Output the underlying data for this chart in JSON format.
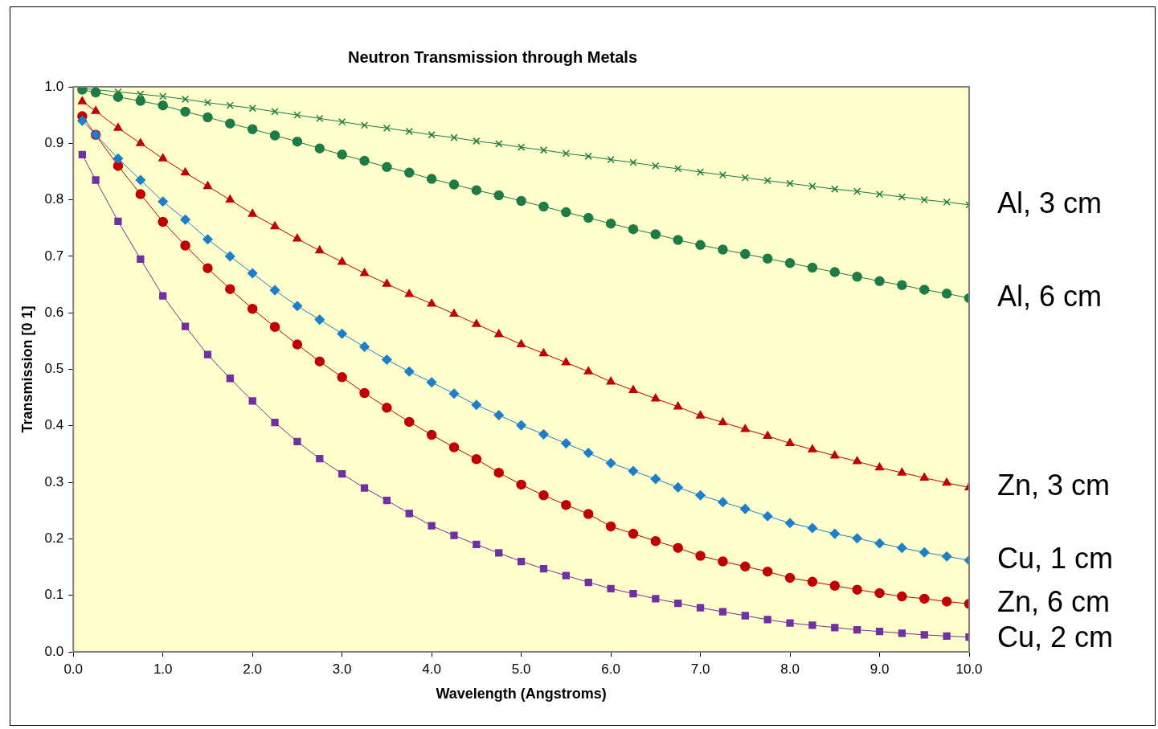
{
  "chart_data": {
    "type": "line",
    "title": "Neutron Transmission through Metals",
    "xlabel": "Wavelength (Angstroms)",
    "ylabel": "Transmission [0 1]",
    "grid": false,
    "legend": false,
    "xlim": [
      0,
      10
    ],
    "ylim": [
      0,
      1
    ],
    "xticks": [
      {
        "value": 0,
        "label": "0.0"
      },
      {
        "value": 1,
        "label": "1.0"
      },
      {
        "value": 2,
        "label": "2.0"
      },
      {
        "value": 3,
        "label": "3.0"
      },
      {
        "value": 4,
        "label": "4.0"
      },
      {
        "value": 5,
        "label": "5.0"
      },
      {
        "value": 6,
        "label": "6.0"
      },
      {
        "value": 7,
        "label": "7.0"
      },
      {
        "value": 8,
        "label": "8.0"
      },
      {
        "value": 9,
        "label": "9.0"
      },
      {
        "value": 10,
        "label": "10.0"
      }
    ],
    "yticks": [
      {
        "value": 0,
        "label": "0.0"
      },
      {
        "value": 0.1,
        "label": "0.1"
      },
      {
        "value": 0.2,
        "label": "0.2"
      },
      {
        "value": 0.3,
        "label": "0.3"
      },
      {
        "value": 0.4,
        "label": "0.4"
      },
      {
        "value": 0.5,
        "label": "0.5"
      },
      {
        "value": 0.6,
        "label": "0.6"
      },
      {
        "value": 0.7,
        "label": "0.7"
      },
      {
        "value": 0.8,
        "label": "0.8"
      },
      {
        "value": 0.9,
        "label": "0.9"
      },
      {
        "value": 1,
        "label": "1.0"
      }
    ],
    "x": [
      0.1,
      0.25,
      0.5,
      0.75,
      1,
      1.25,
      1.5,
      1.75,
      2,
      2.25,
      2.5,
      2.75,
      3,
      3.25,
      3.5,
      3.75,
      4,
      4.25,
      4.5,
      4.75,
      5,
      5.25,
      5.5,
      5.75,
      6,
      6.25,
      6.5,
      6.75,
      7,
      7.25,
      7.5,
      7.75,
      8,
      8.25,
      8.5,
      8.75,
      9,
      9.25,
      9.5,
      9.75,
      10
    ],
    "series": [
      {
        "name": "Al, 3 cm",
        "color": "#1e7b45",
        "marker": "cross",
        "values": [
          0.997,
          0.995,
          0.991,
          0.987,
          0.983,
          0.978,
          0.972,
          0.967,
          0.962,
          0.956,
          0.95,
          0.944,
          0.938,
          0.932,
          0.927,
          0.921,
          0.915,
          0.91,
          0.904,
          0.899,
          0.893,
          0.888,
          0.882,
          0.877,
          0.871,
          0.866,
          0.86,
          0.855,
          0.849,
          0.844,
          0.839,
          0.834,
          0.829,
          0.824,
          0.819,
          0.815,
          0.81,
          0.805,
          0.8,
          0.796,
          0.791
        ]
      },
      {
        "name": "Al, 6 cm",
        "color": "#1e7b45",
        "marker": "circle",
        "values": [
          0.995,
          0.99,
          0.982,
          0.975,
          0.967,
          0.956,
          0.946,
          0.935,
          0.925,
          0.914,
          0.903,
          0.891,
          0.88,
          0.869,
          0.858,
          0.848,
          0.837,
          0.827,
          0.817,
          0.808,
          0.798,
          0.788,
          0.778,
          0.768,
          0.758,
          0.748,
          0.739,
          0.729,
          0.72,
          0.712,
          0.704,
          0.696,
          0.688,
          0.68,
          0.672,
          0.664,
          0.656,
          0.649,
          0.641,
          0.634,
          0.626
        ]
      },
      {
        "name": "Zn, 3 cm",
        "color": "#c00000",
        "marker": "triangle",
        "values": [
          0.974,
          0.957,
          0.927,
          0.9,
          0.873,
          0.848,
          0.824,
          0.8,
          0.775,
          0.753,
          0.731,
          0.71,
          0.69,
          0.67,
          0.651,
          0.633,
          0.616,
          0.598,
          0.58,
          0.562,
          0.544,
          0.528,
          0.512,
          0.496,
          0.478,
          0.463,
          0.448,
          0.434,
          0.418,
          0.406,
          0.394,
          0.382,
          0.369,
          0.358,
          0.347,
          0.337,
          0.326,
          0.317,
          0.308,
          0.299,
          0.291
        ]
      },
      {
        "name": "Cu, 1 cm",
        "color": "#1e7fc8",
        "marker": "diamond",
        "values": [
          0.94,
          0.915,
          0.873,
          0.835,
          0.797,
          0.765,
          0.73,
          0.7,
          0.67,
          0.64,
          0.612,
          0.588,
          0.563,
          0.54,
          0.517,
          0.496,
          0.477,
          0.457,
          0.437,
          0.419,
          0.401,
          0.385,
          0.369,
          0.352,
          0.334,
          0.32,
          0.306,
          0.291,
          0.277,
          0.265,
          0.253,
          0.24,
          0.228,
          0.219,
          0.209,
          0.201,
          0.192,
          0.184,
          0.176,
          0.169,
          0.162
        ]
      },
      {
        "name": "Zn, 6 cm",
        "color": "#c00000",
        "marker": "circle",
        "values": [
          0.948,
          0.915,
          0.86,
          0.81,
          0.761,
          0.719,
          0.679,
          0.642,
          0.607,
          0.575,
          0.544,
          0.514,
          0.486,
          0.458,
          0.432,
          0.407,
          0.384,
          0.362,
          0.341,
          0.317,
          0.296,
          0.277,
          0.26,
          0.244,
          0.222,
          0.209,
          0.196,
          0.184,
          0.17,
          0.16,
          0.151,
          0.142,
          0.131,
          0.124,
          0.117,
          0.11,
          0.104,
          0.098,
          0.094,
          0.089,
          0.085
        ]
      },
      {
        "name": "Cu, 2 cm",
        "color": "#7030a0",
        "marker": "square",
        "values": [
          0.88,
          0.835,
          0.762,
          0.695,
          0.63,
          0.576,
          0.526,
          0.484,
          0.444,
          0.406,
          0.372,
          0.342,
          0.315,
          0.29,
          0.268,
          0.245,
          0.223,
          0.206,
          0.19,
          0.175,
          0.16,
          0.147,
          0.135,
          0.123,
          0.112,
          0.103,
          0.094,
          0.086,
          0.078,
          0.071,
          0.064,
          0.057,
          0.051,
          0.047,
          0.043,
          0.039,
          0.036,
          0.033,
          0.03,
          0.028,
          0.026
        ]
      }
    ]
  }
}
